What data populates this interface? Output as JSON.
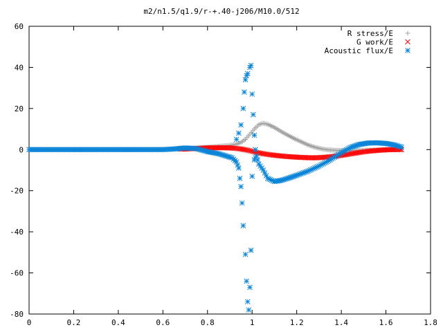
{
  "chart_data": {
    "type": "scatter",
    "title": "m2/n1.5/q1.9/r-+.40-j206/M10.0/512",
    "xlabel": "",
    "ylabel": "",
    "xlim": [
      0,
      1.8
    ],
    "ylim": [
      -80,
      60
    ],
    "x_ticks": [
      "0",
      "0.2",
      "0.4",
      "0.6",
      "0.8",
      "1",
      "1.2",
      "1.4",
      "1.6",
      "1.8"
    ],
    "y_ticks": [
      "60",
      "40",
      "20",
      "0",
      "-20",
      "-40",
      "-60",
      "-80"
    ],
    "grid": false,
    "legend_position": "top-right",
    "series": [
      {
        "name": "R stress/E",
        "marker": "plus",
        "color": "#a0a0a0",
        "points": [
          [
            0.66,
            0.3
          ],
          [
            0.7,
            0.5
          ],
          [
            0.75,
            0.8
          ],
          [
            0.8,
            1.2
          ],
          [
            0.85,
            1.6
          ],
          [
            0.9,
            2.1
          ],
          [
            0.93,
            2.6
          ],
          [
            0.95,
            3.5
          ],
          [
            0.97,
            5
          ],
          [
            0.99,
            7.5
          ],
          [
            1.01,
            10
          ],
          [
            1.03,
            12.2
          ],
          [
            1.05,
            12.8
          ],
          [
            1.07,
            12.3
          ],
          [
            1.1,
            10.8
          ],
          [
            1.13,
            8.8
          ],
          [
            1.16,
            7
          ],
          [
            1.19,
            5.3
          ],
          [
            1.22,
            3.8
          ],
          [
            1.25,
            2.3
          ],
          [
            1.28,
            1.2
          ],
          [
            1.31,
            0.4
          ],
          [
            1.34,
            -0.1
          ],
          [
            1.38,
            -0.4
          ],
          [
            1.42,
            -0.5
          ],
          [
            1.46,
            -0.4
          ],
          [
            1.5,
            -0.3
          ],
          [
            1.55,
            -0.2
          ],
          [
            1.6,
            -0.1
          ],
          [
            1.65,
            0
          ],
          [
            1.67,
            0
          ]
        ]
      },
      {
        "name": "G work/E",
        "marker": "cross",
        "color": "#ff0000",
        "points": [
          [
            0.68,
            0.2
          ],
          [
            0.72,
            0.4
          ],
          [
            0.76,
            0.6
          ],
          [
            0.8,
            0.8
          ],
          [
            0.84,
            0.9
          ],
          [
            0.88,
            0.9
          ],
          [
            0.92,
            0.7
          ],
          [
            0.95,
            0.3
          ],
          [
            0.98,
            -0.3
          ],
          [
            1.0,
            -0.8
          ],
          [
            1.02,
            -1.4
          ],
          [
            1.05,
            -2
          ],
          [
            1.08,
            -2.5
          ],
          [
            1.12,
            -3
          ],
          [
            1.16,
            -3.4
          ],
          [
            1.2,
            -3.7
          ],
          [
            1.24,
            -3.9
          ],
          [
            1.28,
            -4
          ],
          [
            1.32,
            -3.8
          ],
          [
            1.36,
            -3.4
          ],
          [
            1.4,
            -2.8
          ],
          [
            1.44,
            -2.1
          ],
          [
            1.48,
            -1.4
          ],
          [
            1.52,
            -0.8
          ],
          [
            1.56,
            -0.4
          ],
          [
            1.6,
            -0.1
          ],
          [
            1.64,
            0
          ],
          [
            1.67,
            0
          ]
        ]
      },
      {
        "name": "Acoustic flux/E",
        "marker": "star",
        "color": "#0b84d8",
        "points": [
          [
            0,
            0
          ],
          [
            0.05,
            0
          ],
          [
            0.1,
            0
          ],
          [
            0.15,
            0
          ],
          [
            0.2,
            0
          ],
          [
            0.25,
            0
          ],
          [
            0.3,
            0
          ],
          [
            0.35,
            0
          ],
          [
            0.4,
            0
          ],
          [
            0.45,
            0
          ],
          [
            0.5,
            0
          ],
          [
            0.55,
            0
          ],
          [
            0.6,
            0
          ],
          [
            0.65,
            0.3
          ],
          [
            0.7,
            0.8
          ],
          [
            0.75,
            0.5
          ],
          [
            0.8,
            -1
          ],
          [
            0.85,
            -2
          ],
          [
            0.88,
            -3
          ],
          [
            0.91,
            -4
          ],
          [
            0.93,
            -6
          ],
          [
            0.94,
            -9
          ],
          [
            0.945,
            -14
          ],
          [
            0.95,
            -18
          ],
          [
            0.955,
            -26
          ],
          [
            0.96,
            -37
          ],
          [
            0.97,
            -51
          ],
          [
            0.975,
            -64
          ],
          [
            0.98,
            -74
          ],
          [
            0.985,
            -78
          ],
          [
            0.99,
            -67
          ],
          [
            0.995,
            -49
          ],
          [
            1.0,
            -13
          ],
          [
            1.01,
            -5
          ],
          [
            1.02,
            -3
          ],
          [
            1.03,
            -7
          ],
          [
            1.05,
            -10
          ],
          [
            1.07,
            -14
          ],
          [
            1.1,
            -15.5
          ],
          [
            1.13,
            -15
          ],
          [
            1.16,
            -14
          ],
          [
            1.2,
            -12.5
          ],
          [
            1.25,
            -10.5
          ],
          [
            1.3,
            -8
          ],
          [
            1.35,
            -5
          ],
          [
            1.4,
            -1.5
          ],
          [
            1.44,
            1
          ],
          [
            1.48,
            2.5
          ],
          [
            1.52,
            3.2
          ],
          [
            1.56,
            3.3
          ],
          [
            1.6,
            3
          ],
          [
            1.64,
            2.2
          ],
          [
            1.67,
            1.2
          ],
          [
            0.93,
            5
          ],
          [
            0.94,
            8
          ],
          [
            0.95,
            12
          ],
          [
            0.96,
            20
          ],
          [
            0.965,
            28
          ],
          [
            0.97,
            34
          ],
          [
            0.975,
            36
          ],
          [
            0.98,
            37
          ],
          [
            0.99,
            40
          ],
          [
            0.995,
            41
          ],
          [
            1.0,
            27
          ],
          [
            1.005,
            17
          ],
          [
            1.01,
            7
          ],
          [
            1.015,
            0
          ]
        ]
      }
    ]
  }
}
